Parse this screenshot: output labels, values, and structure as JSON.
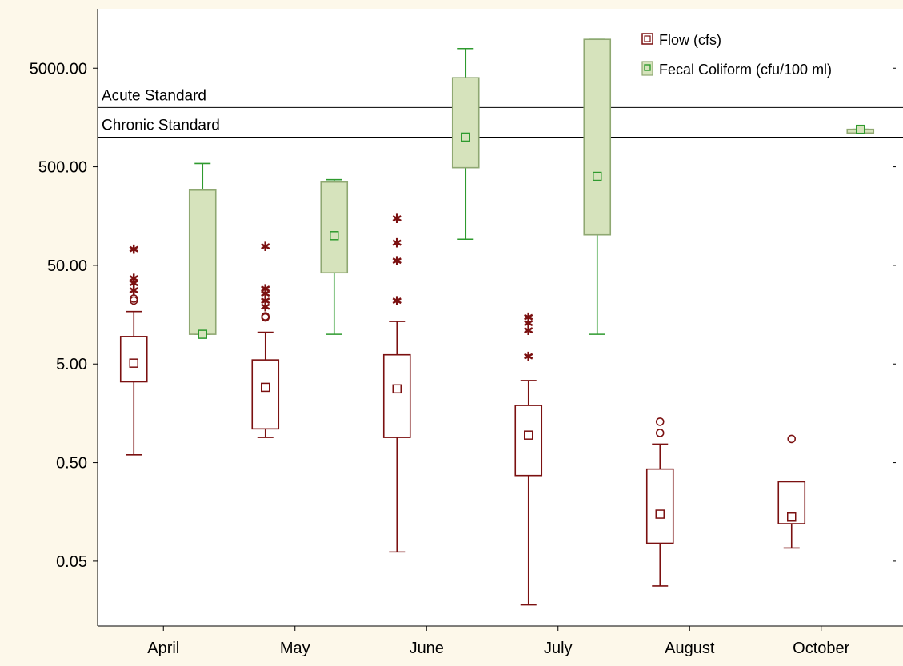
{
  "chart_data": {
    "type": "box",
    "yscale": "log",
    "ylim": [
      0.011,
      20000
    ],
    "yticks": [
      0.05,
      0.5,
      5,
      50,
      500,
      5000
    ],
    "ytick_labels": [
      "0.05",
      "0.50",
      "5.00",
      "50.00",
      "500.00",
      "5000.00"
    ],
    "categories": [
      "April",
      "May",
      "June",
      "July",
      "August",
      "October"
    ],
    "grid": false,
    "legend_position": "top-right",
    "colors": {
      "flow": "#7b1010",
      "fecal_stroke": "#2e9a2e",
      "fecal_fill": "#d6e3bc",
      "fecal_edge": "#8fa872"
    },
    "reference_lines": [
      {
        "label": "Acute Standard",
        "value": 2000
      },
      {
        "label": "Chronic Standard",
        "value": 1000
      }
    ],
    "series": [
      {
        "name": "Flow (cfs)",
        "boxes": [
          {
            "category": "April",
            "min": 0.6,
            "q1": 3.3,
            "median": 5.1,
            "q3": 9.5,
            "max": 17,
            "outliers_circle": [
              22,
              23
            ],
            "outliers_star": [
              28,
              33,
              37,
              73
            ]
          },
          {
            "category": "May",
            "min": 0.9,
            "q1": 1.1,
            "median": 2.9,
            "q3": 5.5,
            "max": 10.5,
            "outliers_circle": [
              14.8,
              15.2
            ],
            "outliers_star": [
              19,
              22,
              26,
              29,
              78
            ]
          },
          {
            "category": "June",
            "min": 0.062,
            "q1": 0.9,
            "median": 2.8,
            "q3": 6.2,
            "max": 13.5,
            "outliers_star": [
              22,
              56,
              85,
              150
            ]
          },
          {
            "category": "July",
            "min": 0.018,
            "q1": 0.37,
            "median": 0.95,
            "q3": 1.9,
            "max": 3.4,
            "outliers_star": [
              6.0,
              11,
              13,
              15
            ]
          },
          {
            "category": "August",
            "min": 0.028,
            "q1": 0.076,
            "median": 0.15,
            "q3": 0.43,
            "max": 0.77,
            "outliers_circle": [
              1.0,
              1.3
            ]
          },
          {
            "category": "October",
            "min": 0.068,
            "q1": 0.12,
            "median": 0.14,
            "q3": 0.32,
            "max": 0.32,
            "outliers_circle": [
              0.87
            ]
          }
        ]
      },
      {
        "name": "Fecal Coliform (cfu/100 ml)",
        "boxes": [
          {
            "category": "April",
            "min": 10,
            "q1": 10,
            "median": 10,
            "q3": 290,
            "max": 540
          },
          {
            "category": "May",
            "min": 10,
            "q1": 42,
            "median": 100,
            "q3": 350,
            "max": 370
          },
          {
            "category": "June",
            "min": 92,
            "q1": 490,
            "median": 1000,
            "q3": 4000,
            "max": 7900
          },
          {
            "category": "July",
            "min": 10,
            "q1": 102,
            "median": 400,
            "q3": 9800,
            "max": 9800
          },
          {
            "category": "October",
            "min": 1100,
            "q1": 1100,
            "median": 1200,
            "q3": 1200,
            "max": 1200
          }
        ]
      }
    ]
  }
}
